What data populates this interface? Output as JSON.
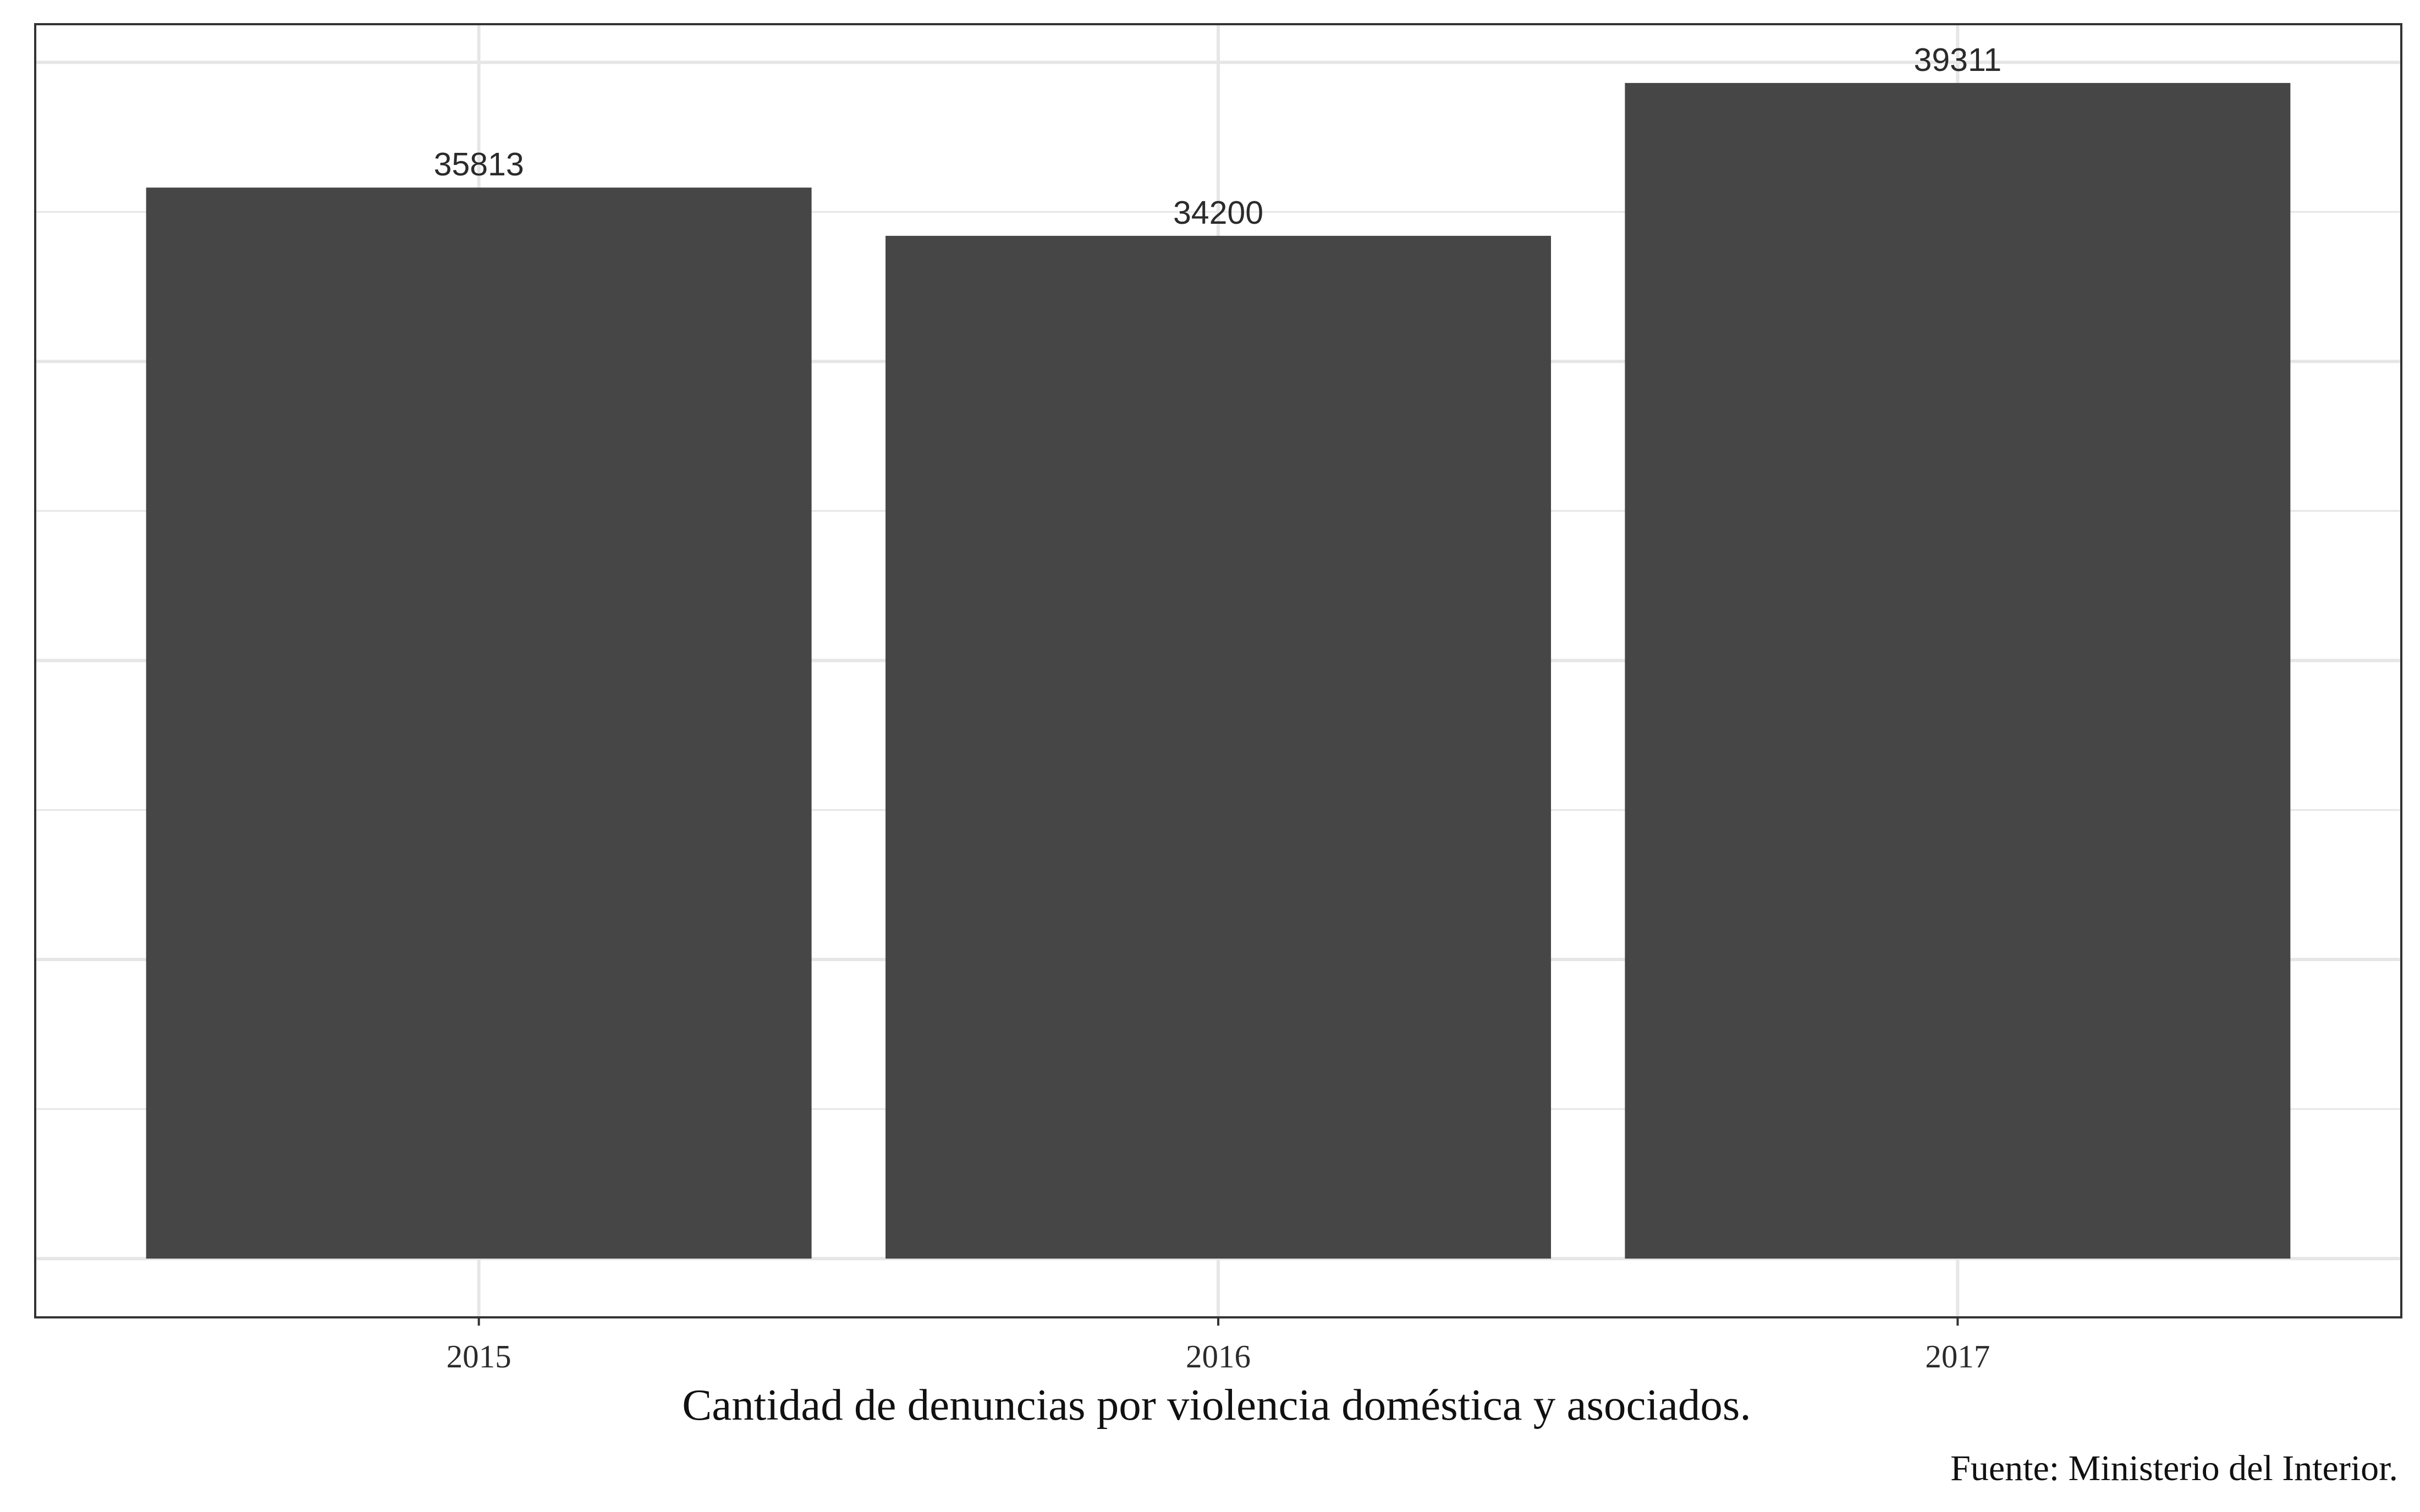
{
  "chart_data": {
    "type": "bar",
    "categories": [
      "2015",
      "2016",
      "2017"
    ],
    "values": [
      35813,
      34200,
      39311
    ],
    "data_labels": [
      "35813",
      "34200",
      "39311"
    ],
    "title": "",
    "xlabel": "Cantidad de denuncias por violencia doméstica y asociados.",
    "ylabel": "",
    "caption": "Fuente: Ministerio del Interior.",
    "ylim": [
      -1965.55,
      41276.55
    ],
    "y_axis_labels_shown": false,
    "grid": true,
    "legend": "none",
    "bar_color": "#464646",
    "grid_color": "#e6e6e6",
    "panel_border_color": "#333333"
  }
}
